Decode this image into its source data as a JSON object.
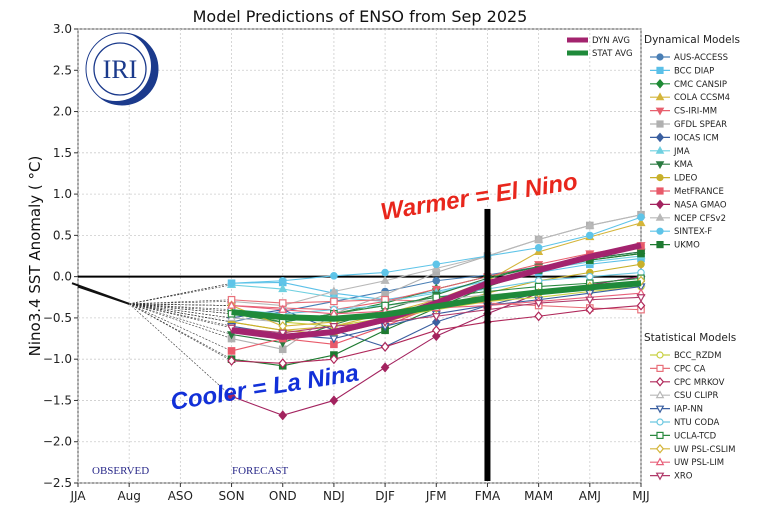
{
  "chart_data": {
    "type": "line",
    "title": "Model Predictions of ENSO from Sep 2025",
    "xlabel": "",
    "ylabel": "Nino3.4 SST Anomaly ( °C)",
    "ylim": [
      -2.5,
      3.0
    ],
    "yticks": [
      "3.0",
      "2.5",
      "2.0",
      "1.5",
      "1.0",
      "0.5",
      "0.0",
      "−0.5",
      "−1.0",
      "−1.5",
      "−2.0",
      "−2.5"
    ],
    "ytick_values": [
      3.0,
      2.5,
      2.0,
      1.5,
      1.0,
      0.5,
      0.0,
      -0.5,
      -1.0,
      -1.5,
      -2.0,
      -2.5
    ],
    "categories": [
      "JJA",
      "Aug",
      "ASO",
      "SON",
      "OND",
      "NDJ",
      "DJF",
      "JFM",
      "FMA",
      "MAM",
      "AMJ",
      "MJJ"
    ],
    "grid": true,
    "observed": {
      "x": [
        "JJA",
        "Aug"
      ],
      "values": [
        -0.12,
        -0.33
      ]
    },
    "forecast_categories": [
      "SON",
      "OND",
      "NDJ",
      "DJF",
      "JFM",
      "FMA",
      "MAM",
      "AMJ",
      "MJJ"
    ],
    "averages": [
      {
        "name": "DYN AVG",
        "color": "#a3236e",
        "values": [
          -0.65,
          -0.73,
          -0.67,
          -0.52,
          -0.32,
          -0.08,
          0.08,
          0.24,
          0.38
        ]
      },
      {
        "name": "STAT AVG",
        "color": "#1f8a3a",
        "values": [
          -0.43,
          -0.49,
          -0.51,
          -0.46,
          -0.36,
          -0.26,
          -0.19,
          -0.13,
          -0.08
        ]
      }
    ],
    "dynamical_models_title": "Dynamical Models",
    "dynamical_models": [
      {
        "name": "AUS-ACCESS",
        "color": "#4a7fb5",
        "marker": "circle",
        "filled": true,
        "values": [
          -0.55,
          -0.42,
          -0.3,
          -0.18,
          -0.05,
          0.02,
          0.12,
          0.22,
          0.3
        ]
      },
      {
        "name": "BCC DIAP",
        "color": "#5bc0e8",
        "marker": "square",
        "filled": true,
        "values": [
          -0.08,
          -0.07,
          -0.2,
          -0.28,
          -0.18,
          -0.05,
          0.05,
          0.15,
          0.22
        ]
      },
      {
        "name": "CMC CANSIP",
        "color": "#1e8a35",
        "marker": "diamond",
        "filled": true,
        "values": [
          -0.42,
          -0.55,
          -0.45,
          -0.32,
          -0.15,
          0.0,
          0.12,
          0.2,
          0.28
        ]
      },
      {
        "name": "COLA CCSM4",
        "color": "#d4b53a",
        "marker": "triangle-up",
        "filled": true,
        "values": [
          -0.55,
          -0.65,
          -0.6,
          -0.45,
          -0.28,
          -0.05,
          0.3,
          0.48,
          0.65
        ]
      },
      {
        "name": "CS-IRI-MM",
        "color": "#e8606e",
        "marker": "triangle-down",
        "filled": true,
        "values": [
          -0.35,
          -0.38,
          -0.4,
          -0.3,
          -0.15,
          0.0,
          0.15,
          0.28,
          0.38
        ]
      },
      {
        "name": "GFDL SPEAR",
        "color": "#b0b0b0",
        "marker": "square",
        "filled": true,
        "values": [
          -0.75,
          -0.88,
          -0.45,
          -0.22,
          0.05,
          0.25,
          0.45,
          0.62,
          0.75
        ]
      },
      {
        "name": "IOCAS ICM",
        "color": "#3a5fa0",
        "marker": "diamond",
        "filled": true,
        "values": [
          -0.5,
          -0.4,
          -0.65,
          -0.85,
          -0.55,
          -0.35,
          -0.2,
          -0.1,
          0.0
        ]
      },
      {
        "name": "JMA",
        "color": "#6fd0e0",
        "marker": "triangle-up",
        "filled": true,
        "values": [
          -0.1,
          -0.15,
          -0.25,
          -0.3,
          -0.2,
          -0.05,
          0.08,
          0.18,
          0.25
        ]
      },
      {
        "name": "KMA",
        "color": "#2a7a40",
        "marker": "triangle-down",
        "filled": true,
        "values": [
          -0.7,
          -0.8,
          -0.58,
          -0.4,
          -0.22,
          -0.02,
          0.12,
          0.22,
          0.3
        ]
      },
      {
        "name": "LDEO",
        "color": "#c8b02a",
        "marker": "circle",
        "filled": true,
        "values": [
          -0.55,
          -0.65,
          -0.7,
          -0.55,
          -0.38,
          -0.2,
          -0.05,
          0.05,
          0.15
        ]
      },
      {
        "name": "MetFRANCE",
        "color": "#e85a6a",
        "marker": "square",
        "filled": true,
        "values": [
          -0.9,
          -0.75,
          -0.82,
          -0.6,
          -0.35,
          -0.1,
          0.1,
          0.25,
          0.35
        ]
      },
      {
        "name": "NASA GMAO",
        "color": "#a3235f",
        "marker": "diamond",
        "filled": true,
        "values": [
          -1.45,
          -1.68,
          -1.5,
          -1.1,
          -0.72,
          -0.45,
          -0.2,
          -0.1,
          0.0
        ]
      },
      {
        "name": "NCEP CFSv2",
        "color": "#b8b8b8",
        "marker": "triangle-up",
        "filled": true,
        "values": [
          -0.3,
          -0.35,
          -0.18,
          -0.05,
          0.1,
          0.25,
          0.45,
          0.62,
          0.75
        ]
      },
      {
        "name": "SINTEX-F",
        "color": "#5ec4e8",
        "marker": "circle",
        "filled": true,
        "values": [
          -0.08,
          -0.05,
          0.01,
          0.05,
          0.15,
          0.25,
          0.35,
          0.5,
          0.72
        ]
      },
      {
        "name": "UKMO",
        "color": "#1e7a30",
        "marker": "square",
        "filled": true,
        "values": [
          -1.0,
          -1.08,
          -0.95,
          -0.65,
          -0.38,
          -0.12,
          0.08,
          0.2,
          0.28
        ]
      }
    ],
    "statistical_models_title": "Statistical Models",
    "statistical_models": [
      {
        "name": "BCC_RZDM",
        "color": "#c8d040",
        "marker": "circle",
        "filled": false,
        "values": [
          -0.45,
          -0.55,
          -0.6,
          -0.5,
          -0.4,
          -0.3,
          -0.25,
          -0.18,
          -0.12
        ]
      },
      {
        "name": "CPC CA",
        "color": "#e8707a",
        "marker": "square",
        "filled": false,
        "values": [
          -0.28,
          -0.32,
          -0.3,
          -0.28,
          -0.3,
          -0.32,
          -0.35,
          -0.38,
          -0.4
        ]
      },
      {
        "name": "CPC MRKOV",
        "color": "#b0285a",
        "marker": "diamond",
        "filled": false,
        "values": [
          -1.02,
          -1.05,
          -1.0,
          -0.85,
          -0.65,
          -0.55,
          -0.48,
          -0.4,
          -0.35
        ]
      },
      {
        "name": "CSU CLIPR",
        "color": "#b8b8b8",
        "marker": "triangle-up",
        "filled": false,
        "values": [
          -0.5,
          -0.55,
          -0.45,
          -0.35,
          -0.28,
          -0.22,
          -0.18,
          -0.12,
          -0.08
        ]
      },
      {
        "name": "IAP-NN",
        "color": "#3a5fa0",
        "marker": "triangle-down",
        "filled": false,
        "values": [
          -0.6,
          -0.7,
          -0.75,
          -0.6,
          -0.45,
          -0.35,
          -0.28,
          -0.2,
          -0.12
        ]
      },
      {
        "name": "NTU CODA",
        "color": "#6cc8e0",
        "marker": "circle",
        "filled": false,
        "values": [
          -0.4,
          -0.45,
          -0.4,
          -0.35,
          -0.25,
          -0.15,
          -0.05,
          0.0,
          0.05
        ]
      },
      {
        "name": "UCLA-TCD",
        "color": "#2a8a40",
        "marker": "square",
        "filled": false,
        "values": [
          -0.45,
          -0.55,
          -0.45,
          -0.35,
          -0.25,
          -0.18,
          -0.12,
          -0.08,
          -0.02
        ]
      },
      {
        "name": "UW PSL-CSLIM",
        "color": "#d4b53a",
        "marker": "diamond",
        "filled": false,
        "values": [
          -0.35,
          -0.6,
          -0.55,
          -0.45,
          -0.38,
          -0.3,
          -0.2,
          -0.12,
          -0.05
        ]
      },
      {
        "name": "UW PSL-LIM",
        "color": "#e8607a",
        "marker": "triangle-up",
        "filled": false,
        "values": [
          -0.35,
          -0.4,
          -0.45,
          -0.42,
          -0.38,
          -0.35,
          -0.3,
          -0.25,
          -0.2
        ]
      },
      {
        "name": "XRO",
        "color": "#b03a6a",
        "marker": "triangle-down",
        "filled": false,
        "values": [
          -0.62,
          -0.68,
          -0.6,
          -0.55,
          -0.48,
          -0.4,
          -0.32,
          -0.28,
          -0.25
        ]
      }
    ],
    "annotations": {
      "warmer": "Warmer = El Nino",
      "cooler": "Cooler = La Nina",
      "observed": "OBSERVED",
      "forecast": "FORECAST",
      "current_marker_at": "FMA"
    },
    "logo_text": "IRI",
    "legend_placement": "right"
  }
}
